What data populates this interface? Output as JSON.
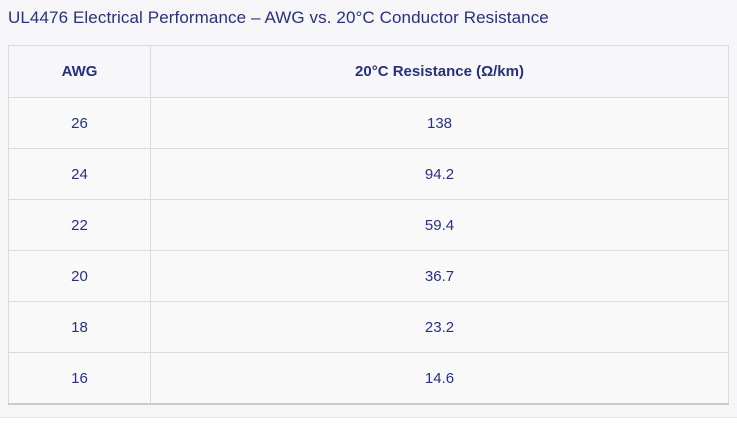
{
  "page": {
    "background_color": "#f6f6f8",
    "text_color": "#27317c",
    "border_color": "#dcdcdf"
  },
  "title": "UL4476 Electrical Performance – AWG vs. 20°C Conductor Resistance",
  "table": {
    "headers": [
      "AWG",
      "20°C Resistance (Ω/km)"
    ],
    "rows": [
      {
        "awg": "26",
        "resistance": "138"
      },
      {
        "awg": "24",
        "resistance": "94.2"
      },
      {
        "awg": "22",
        "resistance": "59.4"
      },
      {
        "awg": "20",
        "resistance": "36.7"
      },
      {
        "awg": "18",
        "resistance": "23.2"
      },
      {
        "awg": "16",
        "resistance": "14.6"
      }
    ]
  },
  "chart_data": {
    "type": "table",
    "title": "UL4476 Electrical Performance – AWG vs. 20°C Conductor Resistance",
    "columns": [
      "AWG",
      "20°C Resistance (Ω/km)"
    ],
    "rows": [
      [
        26,
        138
      ],
      [
        24,
        94.2
      ],
      [
        22,
        59.4
      ],
      [
        20,
        36.7
      ],
      [
        18,
        23.2
      ],
      [
        16,
        14.6
      ]
    ]
  }
}
